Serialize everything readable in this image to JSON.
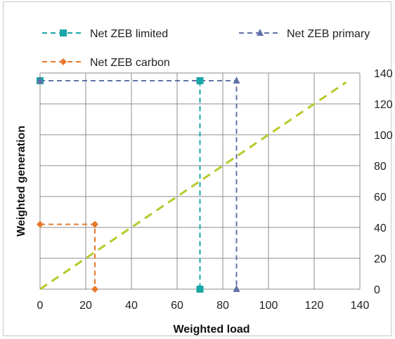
{
  "chart_data": {
    "type": "line",
    "xlabel": "Weighted load",
    "ylabel": "Weighted generation",
    "xlim": [
      0,
      140
    ],
    "ylim": [
      0,
      140
    ],
    "x_ticks": [
      "0",
      "20",
      "40",
      "60",
      "80",
      "100",
      "120",
      "140"
    ],
    "y_ticks": [
      "0",
      "20",
      "40",
      "60",
      "80",
      "100",
      "120",
      "140"
    ],
    "grid": true,
    "legend": "top",
    "series": [
      {
        "name": "Net ZEB limited",
        "color": "#1aa6a6",
        "marker": "square",
        "points": [
          [
            0,
            135
          ],
          [
            70,
            135
          ],
          [
            70,
            0
          ]
        ]
      },
      {
        "name": "Net ZEB primary",
        "color": "#6070a8",
        "marker": "triangle",
        "points": [
          [
            0,
            135
          ],
          [
            86,
            135
          ],
          [
            86,
            0
          ]
        ]
      },
      {
        "name": "Net ZEB carbon",
        "color": "#e8772a",
        "marker": "diamond",
        "points": [
          [
            0,
            42
          ],
          [
            24,
            42
          ],
          [
            24,
            0
          ]
        ]
      },
      {
        "name": "",
        "color": "#b8c82a",
        "marker": "none",
        "points": [
          [
            0,
            0
          ],
          [
            134,
            134
          ]
        ]
      }
    ]
  }
}
